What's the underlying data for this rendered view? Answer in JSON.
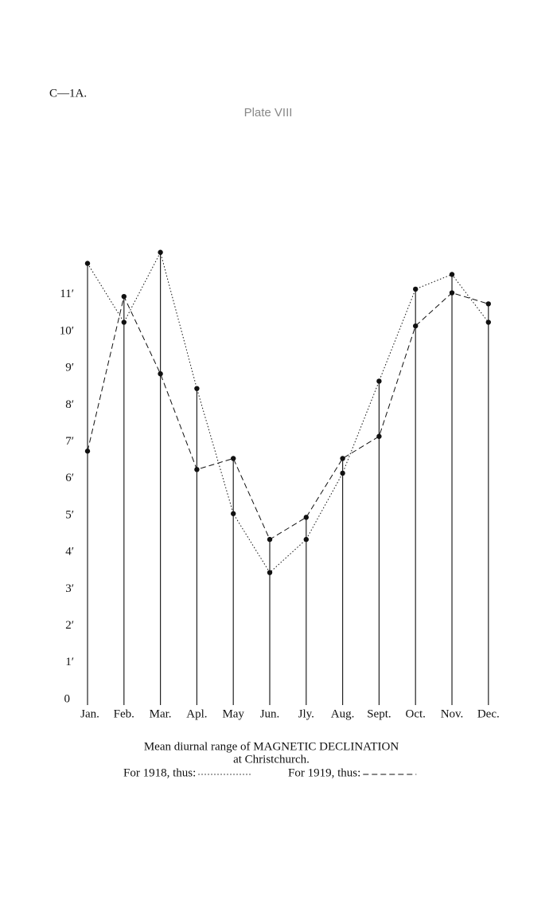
{
  "header": {
    "code": "C—1A.",
    "plate": "Plate VIII"
  },
  "chart_data": {
    "type": "line",
    "title": "Mean diurnal range of MAGNETIC DECLINATION",
    "subtitle": "at Christchurch.",
    "categories": [
      "Jan.",
      "Feb.",
      "Mar.",
      "Apl.",
      "May",
      "Jun.",
      "Jly.",
      "Aug.",
      "Sept.",
      "Oct.",
      "Nov.",
      "Dec."
    ],
    "series": [
      {
        "name": "For 1918, thus:",
        "color": "#111111",
        "dash": "dotted",
        "values": [
          12.0,
          10.4,
          12.3,
          8.6,
          5.2,
          3.6,
          4.5,
          6.3,
          8.8,
          11.3,
          11.7,
          10.4
        ]
      },
      {
        "name": "For 1919, thus:",
        "color": "#111111",
        "dash": "dashed",
        "values": [
          6.9,
          11.1,
          9.0,
          6.4,
          6.7,
          4.5,
          5.1,
          6.7,
          7.3,
          10.3,
          11.2,
          10.9
        ]
      }
    ],
    "ylim": [
      0,
      12.5
    ],
    "yticks": [
      0,
      {
        "value": 1,
        "label": "1′"
      },
      {
        "value": 2,
        "label": "2′"
      },
      {
        "value": 3,
        "label": "3′"
      },
      {
        "value": 4,
        "label": "4′"
      },
      {
        "value": 5,
        "label": "5′"
      },
      {
        "value": 6,
        "label": "6′"
      },
      {
        "value": 7,
        "label": "7′"
      },
      {
        "value": 8,
        "label": "8′"
      },
      {
        "value": 9,
        "label": "9′"
      },
      {
        "value": 10,
        "label": "10′"
      },
      {
        "value": 11,
        "label": "11′"
      }
    ],
    "grid": false
  }
}
